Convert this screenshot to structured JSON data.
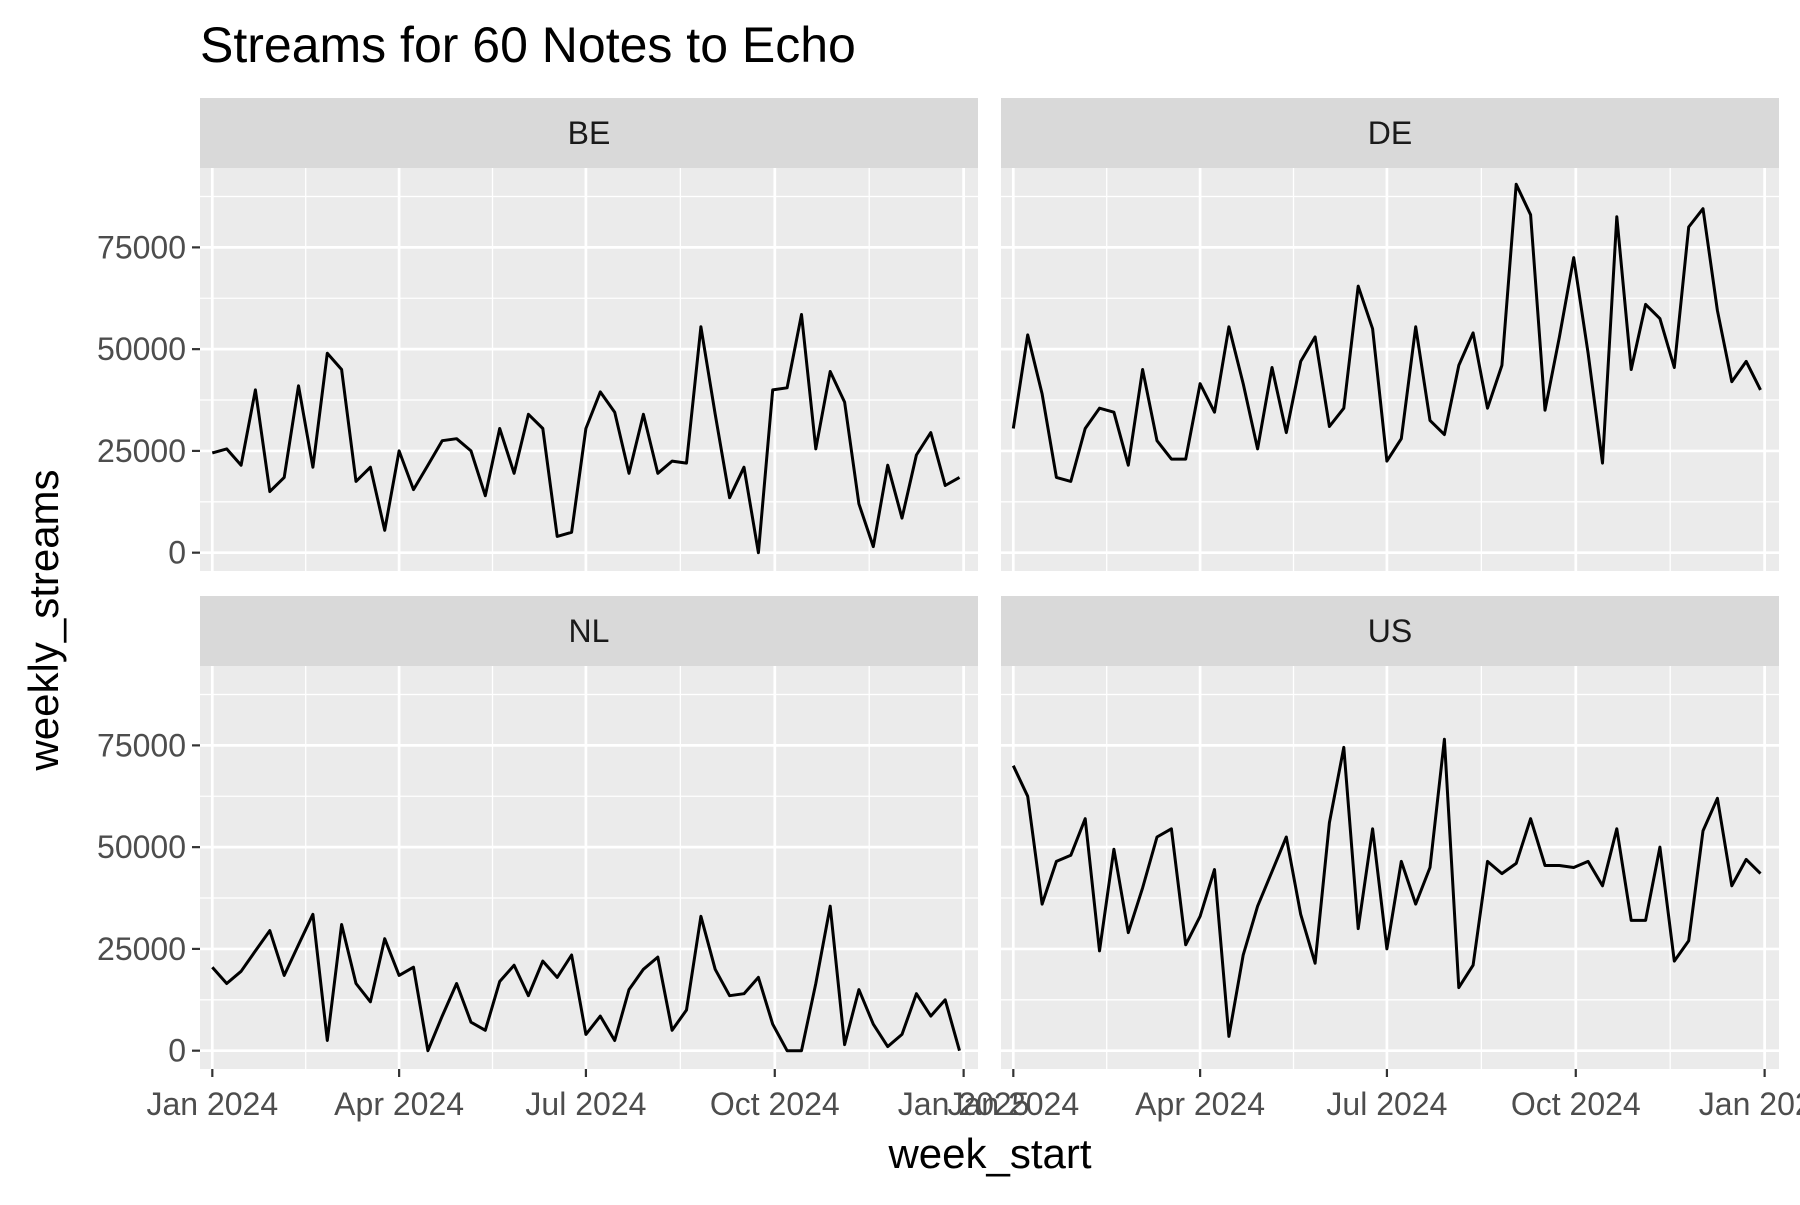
{
  "chart_data": {
    "type": "line",
    "title": "Streams for 60 Notes to Echo",
    "xlabel": "week_start",
    "ylabel": "weekly_streams",
    "x_ticks": [
      "Jan 2024",
      "Apr 2024",
      "Jul 2024",
      "Oct 2024",
      "Jan 2025"
    ],
    "x_range": [
      "2023-12-26",
      "2025-01-08"
    ],
    "y_ticks": [
      0,
      25000,
      50000,
      75000
    ],
    "y_range": [
      -4500,
      94500
    ],
    "grid": true,
    "background": "#ebebeb",
    "strip_background": "#d9d9d9",
    "line_color": "#000000",
    "panels": [
      {
        "name": "BE",
        "values": [
          24500,
          25500,
          21500,
          40000,
          15000,
          18500,
          41000,
          21000,
          49000,
          45000,
          17500,
          21000,
          5500,
          25000,
          15500,
          21500,
          27500,
          28000,
          25000,
          14000,
          30500,
          19500,
          34000,
          30500,
          4000,
          5000,
          30500,
          39500,
          34500,
          19500,
          34000,
          19500,
          22500,
          22000,
          55500,
          34000,
          13500,
          21000,
          0,
          40000,
          40500,
          58500,
          25500,
          44500,
          37000,
          12000,
          1500,
          21500,
          8500,
          24000,
          29500,
          16500,
          18500
        ]
      },
      {
        "name": "DE",
        "values": [
          30500,
          53500,
          39000,
          18500,
          17500,
          30500,
          35500,
          34500,
          21500,
          45000,
          27500,
          23000,
          23000,
          41500,
          34500,
          55500,
          41500,
          25500,
          45500,
          29500,
          47000,
          53000,
          31000,
          35500,
          65500,
          55000,
          22500,
          28000,
          55500,
          32500,
          29000,
          46000,
          54000,
          35500,
          46000,
          90500,
          83000,
          35000,
          53000,
          72500,
          49000,
          22000,
          82500,
          45000,
          61000,
          57500,
          45500,
          80000,
          84500,
          59500,
          42000,
          47000,
          40000
        ]
      },
      {
        "name": "NL",
        "values": [
          20500,
          16500,
          19500,
          24500,
          29500,
          18500,
          26000,
          33500,
          2500,
          31000,
          16500,
          12000,
          27500,
          18500,
          20500,
          0,
          8500,
          16500,
          7000,
          5000,
          17000,
          21000,
          13500,
          22000,
          18000,
          23500,
          4000,
          8500,
          2500,
          15000,
          20000,
          23000,
          5000,
          10000,
          33000,
          20000,
          13500,
          14000,
          18000,
          6500,
          0,
          0,
          16500,
          35500,
          1500,
          15000,
          6500,
          1000,
          4000,
          14000,
          8500,
          12500,
          0
        ]
      },
      {
        "name": "US",
        "values": [
          70000,
          62500,
          36000,
          46500,
          48000,
          57000,
          24500,
          49500,
          29000,
          40000,
          52500,
          54500,
          26000,
          33000,
          44500,
          3500,
          23500,
          35500,
          44000,
          52500,
          33500,
          21500,
          56000,
          74500,
          30000,
          54500,
          25000,
          46500,
          36000,
          45000,
          76500,
          15500,
          21000,
          46500,
          43500,
          46000,
          57000,
          45500,
          45500,
          45000,
          46500,
          40500,
          54500,
          32000,
          32000,
          50000,
          22000,
          27000,
          54000,
          62000,
          40500,
          47000,
          43500
        ]
      }
    ]
  }
}
